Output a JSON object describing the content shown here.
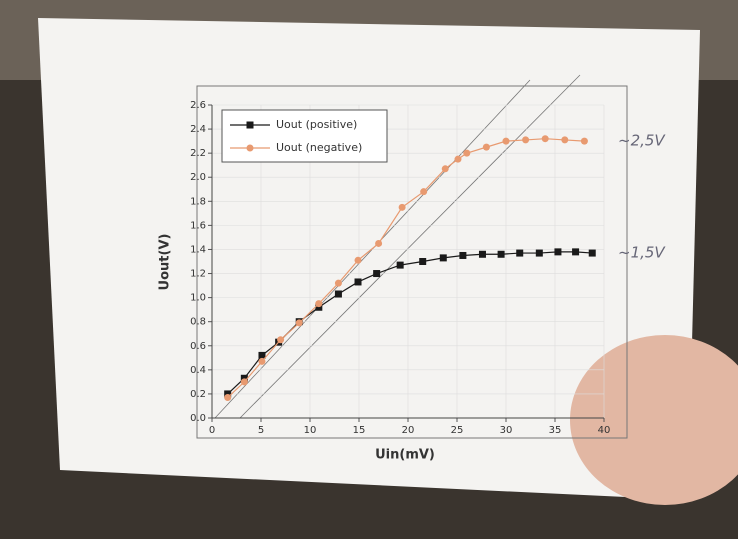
{
  "chart_data": {
    "type": "line",
    "x_label": "Uin(mV)",
    "y_label": "Uout(V)",
    "xlim": [
      0,
      40
    ],
    "xticks": [
      0,
      5,
      10,
      15,
      20,
      25,
      30,
      35,
      40
    ],
    "ylim": [
      0,
      2.6
    ],
    "yticks": [
      {
        "value": 0,
        "label": "0.0"
      },
      0.2,
      0.4,
      0.6,
      0.8,
      {
        "value": 1,
        "label": "1.0"
      },
      1.2,
      1.4,
      1.6,
      1.8,
      {
        "value": 2,
        "label": "2.0"
      },
      2.2,
      2.4,
      2.6
    ],
    "grid": true,
    "legend": "upper left",
    "series": [
      {
        "name": "Uout (positive)",
        "color": "#1a1a1a",
        "marker": "square",
        "x": [
          1.6,
          3.3,
          5.1,
          6.8,
          8.9,
          10.9,
          12.9,
          14.9,
          16.8,
          19.2,
          21.5,
          23.6,
          25.6,
          27.6,
          29.5,
          31.4,
          33.4,
          35.3,
          37.1,
          38.8
        ],
        "values": [
          0.2,
          0.33,
          0.52,
          0.63,
          0.8,
          0.92,
          1.03,
          1.13,
          1.2,
          1.27,
          1.3,
          1.33,
          1.35,
          1.36,
          1.36,
          1.37,
          1.37,
          1.38,
          1.38,
          1.37
        ]
      },
      {
        "name": "Uout (negative)",
        "color": "#e89a70",
        "marker": "circle",
        "x": [
          1.6,
          3.3,
          5.1,
          7.0,
          8.9,
          10.9,
          12.9,
          14.9,
          17.0,
          19.4,
          21.6,
          23.8,
          25.1,
          26.0,
          28.0,
          30.0,
          32.0,
          34.0,
          36.0,
          38.0
        ],
        "values": [
          0.17,
          0.3,
          0.47,
          0.65,
          0.79,
          0.95,
          1.12,
          1.31,
          1.45,
          1.75,
          1.88,
          2.07,
          2.15,
          2.2,
          2.25,
          2.3,
          2.31,
          2.32,
          2.31,
          2.3
        ]
      }
    ],
    "annotations": [
      "~2,5V",
      "~1,5V"
    ]
  }
}
